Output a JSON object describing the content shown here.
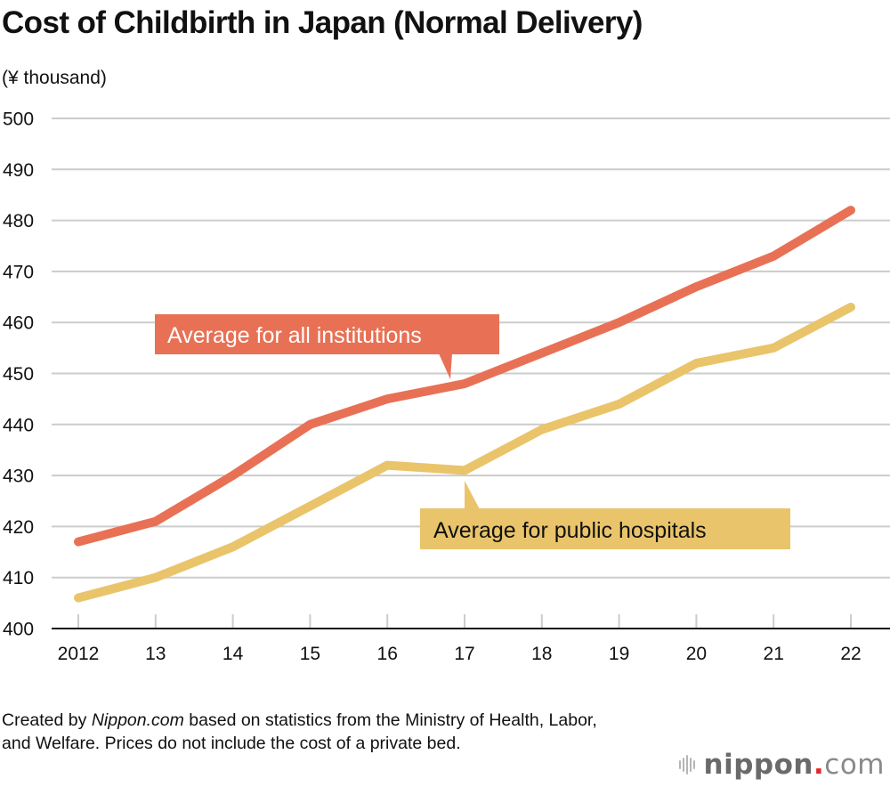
{
  "header": {
    "title": "Cost of Childbirth in Japan (Normal Delivery)",
    "unit_label": "(¥ thousand)"
  },
  "chart_data": {
    "type": "line",
    "title": "Cost of Childbirth in Japan (Normal Delivery)",
    "xlabel": "",
    "ylabel": "(¥ thousand)",
    "x": [
      "2012",
      "13",
      "14",
      "15",
      "16",
      "17",
      "18",
      "19",
      "20",
      "21",
      "22"
    ],
    "ylim": [
      400,
      500
    ],
    "yticks": [
      400,
      410,
      420,
      430,
      440,
      450,
      460,
      470,
      480,
      490,
      500
    ],
    "grid": true,
    "legend": "inline-callouts",
    "series": [
      {
        "name": "Average for all institutions",
        "color": "#E87155",
        "label_text_color": "#FFFFFF",
        "values": [
          417,
          421,
          430,
          440,
          445,
          448,
          454,
          460,
          467,
          473,
          482
        ]
      },
      {
        "name": "Average for public hospitals",
        "color": "#E9C46A",
        "label_text_color": "#111111",
        "values": [
          406,
          410,
          416,
          424,
          432,
          431,
          439,
          444,
          452,
          455,
          463
        ]
      }
    ]
  },
  "footnote": {
    "prefix": "Created by ",
    "source_italic": "Nippon.com",
    "rest": " based on statistics from the Ministry of Health, Labor, and Welfare. Prices do not include the cost of a private bed."
  },
  "logo": {
    "brand": "nippon",
    "dot": ".",
    "suffix": "com"
  }
}
